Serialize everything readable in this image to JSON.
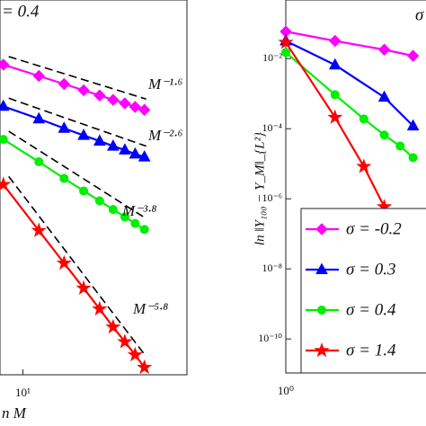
{
  "chart_data": [
    {
      "type": "line",
      "title": "= 0.4",
      "xlabel": "n M",
      "xscale": "log",
      "yscale": "log",
      "xlim": [
        7.7,
        65
      ],
      "ylim": [
        1e-09,
        1
      ],
      "xticks": [
        {
          "value": 10,
          "label": "10¹"
        }
      ],
      "annotations": [
        "M⁻¹·⁶",
        "M⁻²·⁶",
        "M⁻³·⁸",
        "M⁻⁵·⁸"
      ],
      "x": [
        8,
        12,
        16,
        20,
        24,
        28,
        32,
        36,
        40
      ],
      "series": [
        {
          "color": "#ff00ff",
          "marker": "diamond",
          "values": [
            0.028,
            0.015,
            0.0096,
            0.0068,
            0.0051,
            0.004,
            0.0033,
            0.0027,
            0.0023
          ]
        },
        {
          "color": "#0000ff",
          "marker": "triangle",
          "values": [
            0.0028,
            0.0014,
            0.00083,
            0.00056,
            0.00041,
            0.00031,
            0.00025,
            0.0002,
            0.00017
          ]
        },
        {
          "color": "#00ee00",
          "marker": "circle",
          "values": [
            0.00045,
            0.00013,
            5.2e-05,
            2.6e-05,
            1.5e-05,
            9.3e-06,
            6.2e-06,
            4.3e-06,
            3.1e-06
          ]
        },
        {
          "color": "#ff0000",
          "marker": "star",
          "values": [
            3.7e-05,
            2.9e-06,
            4.8e-07,
            1.2e-07,
            3.8e-08,
            1.4e-08,
            6.2e-09,
            3e-09,
            1.5e-09
          ]
        }
      ]
    },
    {
      "type": "line",
      "title": "σ",
      "ylabel": "ln ‖Y₁₀₀ − Y_M‖_{L²}",
      "xscale": "log",
      "yscale": "log",
      "xlim": [
        1,
        10
      ],
      "ylim": [
        1.07e-11,
        0.47
      ],
      "xticks": [
        {
          "value": 1,
          "label": "10⁰"
        }
      ],
      "yticks": [
        {
          "value": 0.01,
          "label": "10⁻²"
        },
        {
          "value": 0.0001,
          "label": "10⁻⁴"
        },
        {
          "value": 1e-06,
          "label": "10⁻⁶"
        },
        {
          "value": 1e-08,
          "label": "10⁻⁸"
        },
        {
          "value": 1e-10,
          "label": "10⁻¹⁰"
        }
      ],
      "legend": "lower-right",
      "series": [
        {
          "name": "σ = -0.2",
          "color": "#ff00ff",
          "marker": "diamond",
          "x": [
            1,
            2,
            4,
            6
          ],
          "values": [
            0.059,
            0.032,
            0.018,
            0.012
          ]
        },
        {
          "name": "σ = 0.3",
          "color": "#0000ff",
          "marker": "triangle",
          "x": [
            1,
            2,
            4,
            6
          ],
          "values": [
            0.032,
            0.0066,
            0.00079,
            0.00012
          ]
        },
        {
          "name": "σ = 0.4",
          "color": "#00ee00",
          "marker": "circle",
          "x": [
            1,
            2,
            3,
            4,
            5,
            6
          ],
          "values": [
            0.015,
            0.00093,
            0.00019,
            6.6e-05,
            3.2e-05,
            1.5e-05
          ]
        },
        {
          "name": "σ = 1.4",
          "color": "#ff0000",
          "marker": "star",
          "x": [
            1,
            2,
            3,
            4,
            5,
            6
          ],
          "values": [
            0.029,
            0.00021,
            8.3e-06,
            5.9e-07,
            7.9e-08,
            1.3e-08
          ]
        }
      ]
    }
  ]
}
